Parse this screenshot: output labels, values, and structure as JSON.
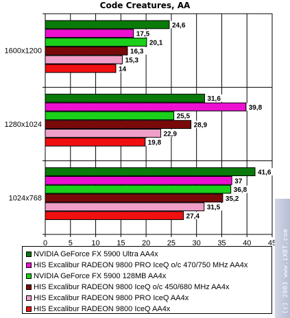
{
  "chart_data": {
    "type": "bar",
    "orientation": "horizontal",
    "title": "Code Creatures, AA",
    "categories": [
      "1600x1200",
      "1280x1024",
      "1024x768"
    ],
    "series": [
      {
        "name": "NVIDIA GeForce FX 5900 Ultra AA4x",
        "color": "#0a7a0a",
        "values": [
          24.6,
          31.6,
          41.6
        ],
        "labels": [
          "24,6",
          "31,6",
          "41,6"
        ]
      },
      {
        "name": "HIS Excalibur RADEON 9800 PRO IceQ o/c 470/750 MHz AA4x",
        "color": "#ee10d0",
        "values": [
          17.5,
          39.8,
          37
        ],
        "labels": [
          "17,5",
          "39,8",
          "37"
        ]
      },
      {
        "name": "NVIDIA GeForce FX 5900 128MB AA4x",
        "color": "#1ad01a",
        "values": [
          20.1,
          25.5,
          36.8
        ],
        "labels": [
          "20,1",
          "25,5",
          "36,8"
        ]
      },
      {
        "name": "HIS Excalibur RADEON 9800 IceQ o/c 450/680 MHz AA4x",
        "color": "#7a0a0a",
        "values": [
          16.3,
          28.9,
          35.2
        ],
        "labels": [
          "16,3",
          "28,9",
          "35,2"
        ]
      },
      {
        "name": "HIS Excalibur RADEON 9800 PRO IceQ AA4x",
        "color": "#f0a0c8",
        "values": [
          15.3,
          22.9,
          31.5
        ],
        "labels": [
          "15,3",
          "22,9",
          "31,5"
        ]
      },
      {
        "name": "HIS Excalibur RADEON 9800 IceQ AA4x",
        "color": "#f01010",
        "values": [
          14,
          19.8,
          27.4
        ],
        "labels": [
          "14",
          "19,8",
          "27,4"
        ]
      }
    ],
    "xlim": [
      0,
      45
    ],
    "xticks": [
      "0",
      "5",
      "10",
      "15",
      "20",
      "25",
      "30",
      "35",
      "40",
      "45"
    ],
    "xlabel": "",
    "ylabel": "",
    "grid": true,
    "legend_position": "bottom"
  },
  "watermark": {
    "text": "(c) 2003 www.iXBT.com"
  }
}
